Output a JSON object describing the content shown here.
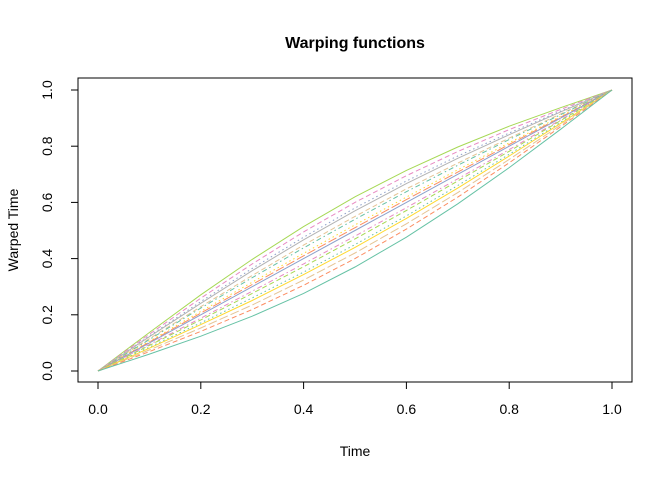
{
  "chart_data": {
    "type": "line",
    "title": "Warping functions",
    "xlabel": "Time",
    "ylabel": "Warped Time",
    "xlim": [
      0,
      1
    ],
    "ylim": [
      0,
      1
    ],
    "xticks": [
      "0.0",
      "0.2",
      "0.4",
      "0.6",
      "0.8",
      "1.0"
    ],
    "yticks": [
      "0.0",
      "0.2",
      "0.4",
      "0.6",
      "0.8",
      "1.0"
    ],
    "grid": false,
    "x": [
      0,
      0.1,
      0.2,
      0.3,
      0.4,
      0.5,
      0.6,
      0.7,
      0.8,
      0.9,
      1
    ],
    "series": [
      {
        "color": "#A6D854",
        "dash": "solid",
        "values": [
          0,
          0.137,
          0.271,
          0.397,
          0.514,
          0.62,
          0.714,
          0.797,
          0.871,
          0.937,
          1
        ]
      },
      {
        "color": "#E78AC3",
        "dash": "dashed",
        "values": [
          0,
          0.131,
          0.259,
          0.381,
          0.495,
          0.6,
          0.695,
          0.781,
          0.859,
          0.931,
          1
        ]
      },
      {
        "color": "#8DA0CB",
        "dash": "dotted",
        "values": [
          0,
          0.125,
          0.247,
          0.365,
          0.476,
          0.58,
          0.676,
          0.765,
          0.847,
          0.925,
          1
        ]
      },
      {
        "color": "#B3B3B3",
        "dash": "solid",
        "values": [
          0,
          0.122,
          0.241,
          0.357,
          0.467,
          0.57,
          0.667,
          0.757,
          0.841,
          0.922,
          1
        ]
      },
      {
        "color": "#E5C494",
        "dash": "dashed",
        "values": [
          0,
          0.115,
          0.229,
          0.34,
          0.448,
          0.55,
          0.648,
          0.74,
          0.829,
          0.915,
          1
        ]
      },
      {
        "color": "#66C2A5",
        "dash": "dotdash",
        "values": [
          0,
          0.112,
          0.224,
          0.332,
          0.438,
          0.54,
          0.638,
          0.732,
          0.824,
          0.912,
          1
        ]
      },
      {
        "color": "#FFD92F",
        "dash": "dotted",
        "values": [
          0,
          0.106,
          0.212,
          0.316,
          0.419,
          0.52,
          0.619,
          0.716,
          0.812,
          0.906,
          1
        ]
      },
      {
        "color": "#FC8D62",
        "dash": "longdash",
        "values": [
          0,
          0.103,
          0.206,
          0.308,
          0.41,
          0.51,
          0.61,
          0.708,
          0.806,
          0.903,
          1
        ]
      },
      {
        "color": "#8DA0CB",
        "dash": "solid",
        "values": [
          0,
          0.1,
          0.2,
          0.3,
          0.4,
          0.5,
          0.6,
          0.7,
          0.8,
          0.9,
          1
        ]
      },
      {
        "color": "#E78AC3",
        "dash": "dotdash",
        "values": [
          0,
          0.094,
          0.188,
          0.284,
          0.381,
          0.48,
          0.581,
          0.684,
          0.788,
          0.894,
          1
        ]
      },
      {
        "color": "#A6D854",
        "dash": "dashed",
        "values": [
          0,
          0.091,
          0.182,
          0.276,
          0.371,
          0.47,
          0.571,
          0.676,
          0.782,
          0.891,
          1
        ]
      },
      {
        "color": "#66C2A5",
        "dash": "dotted",
        "values": [
          0,
          0.085,
          0.171,
          0.26,
          0.352,
          0.45,
          0.552,
          0.66,
          0.771,
          0.885,
          1
        ]
      },
      {
        "color": "#FFD92F",
        "dash": "solid",
        "values": [
          0,
          0.081,
          0.165,
          0.251,
          0.343,
          0.44,
          0.543,
          0.651,
          0.765,
          0.881,
          1
        ]
      },
      {
        "color": "#E5C494",
        "dash": "longdash",
        "values": [
          0,
          0.075,
          0.153,
          0.235,
          0.324,
          0.42,
          0.524,
          0.635,
          0.753,
          0.875,
          1
        ]
      },
      {
        "color": "#FC8D62",
        "dash": "dashed",
        "values": [
          0,
          0.069,
          0.141,
          0.219,
          0.305,
          0.4,
          0.505,
          0.619,
          0.741,
          0.869,
          1
        ]
      },
      {
        "color": "#66C2A5",
        "dash": "solid",
        "values": [
          0,
          0.06,
          0.124,
          0.195,
          0.276,
          0.37,
          0.476,
          0.595,
          0.724,
          0.86,
          1
        ]
      }
    ]
  }
}
